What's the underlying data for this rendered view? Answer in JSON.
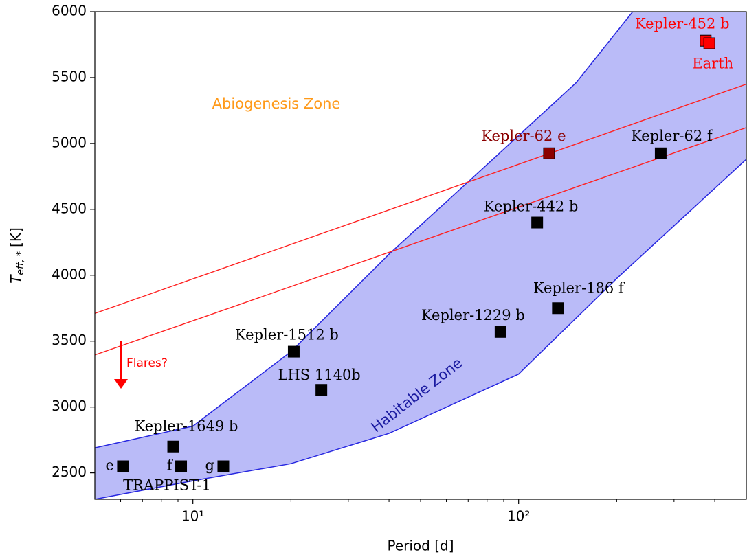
{
  "chart_data": {
    "type": "scatter",
    "xlabel": "Period [d]",
    "ylabel": "T",
    "ylabel_sub": "eff, *",
    "ylabel_unit": "[K]",
    "xscale": "log",
    "xlim": [
      5,
      500
    ],
    "ylim": [
      2300,
      6000
    ],
    "xticks": [
      {
        "value": 10,
        "label": "10¹"
      },
      {
        "value": 100,
        "label": "10²"
      }
    ],
    "xminorticks": [
      6,
      7,
      8,
      9,
      20,
      30,
      40,
      50,
      60,
      70,
      80,
      90,
      200,
      300,
      400
    ],
    "yticks": [
      2500,
      3000,
      3500,
      4000,
      4500,
      5000,
      5500,
      6000
    ],
    "zone": {
      "label": "Habitable Zone",
      "fill": "#babbf8",
      "edge": "#2626e0",
      "upper": {
        "x": [
          5,
          10,
          20,
          40,
          80,
          150,
          224
        ],
        "y": [
          2690,
          2855,
          3420,
          4160,
          4840,
          5460,
          6000
        ]
      },
      "lower": {
        "x": [
          5,
          10,
          20,
          40,
          100,
          200,
          500
        ],
        "y": [
          2300,
          2440,
          2570,
          2800,
          3250,
          3975,
          4880
        ]
      }
    },
    "lines": [
      {
        "color": "#ff2020",
        "x": [
          5,
          500
        ],
        "y": [
          3710,
          5450
        ]
      },
      {
        "color": "#ff2020",
        "x": [
          5,
          500
        ],
        "y": [
          3395,
          5120
        ]
      }
    ],
    "points": [
      {
        "label": "e",
        "x": 6.1,
        "y": 2550,
        "color": "#000000",
        "label_color": "#000000"
      },
      {
        "label": "f",
        "x": 9.2,
        "y": 2550,
        "color": "#000000",
        "label_color": "#000000"
      },
      {
        "label": "g",
        "x": 12.4,
        "y": 2550,
        "color": "#000000",
        "label_color": "#000000"
      },
      {
        "label": "Kepler-1649 b",
        "x": 8.7,
        "y": 2700,
        "color": "#000000",
        "label_color": "#000000"
      },
      {
        "label": "Kepler-1512 b",
        "x": 20.4,
        "y": 3420,
        "color": "#000000",
        "label_color": "#000000"
      },
      {
        "label": "LHS 1140b",
        "x": 24.8,
        "y": 3130,
        "color": "#000000",
        "label_color": "#000000"
      },
      {
        "label": "Kepler-1229 b",
        "x": 88,
        "y": 3570,
        "color": "#000000",
        "label_color": "#000000"
      },
      {
        "label": "Kepler-186 f",
        "x": 132,
        "y": 3750,
        "color": "#000000",
        "label_color": "#000000"
      },
      {
        "label": "Kepler-442 b",
        "x": 114,
        "y": 4400,
        "color": "#000000",
        "label_color": "#000000"
      },
      {
        "label": "Kepler-62 e",
        "x": 124,
        "y": 4925,
        "color": "#8b0000",
        "label_color": "#8b0000"
      },
      {
        "label": "Kepler-62 f",
        "x": 273,
        "y": 4925,
        "color": "#000000",
        "label_color": "#000000"
      },
      {
        "label": "Kepler-452 b",
        "x": 375,
        "y": 5780,
        "color": "#ff0000",
        "label_color": "#ff0000"
      },
      {
        "label": "Earth",
        "x": 385,
        "y": 5760,
        "color": "#ff0000",
        "label_color": "#ff0000"
      }
    ],
    "group_label": "TRAPPIST-1",
    "abiogenesis_label": "Abiogenesis Zone",
    "flares_label": "Flares?"
  }
}
